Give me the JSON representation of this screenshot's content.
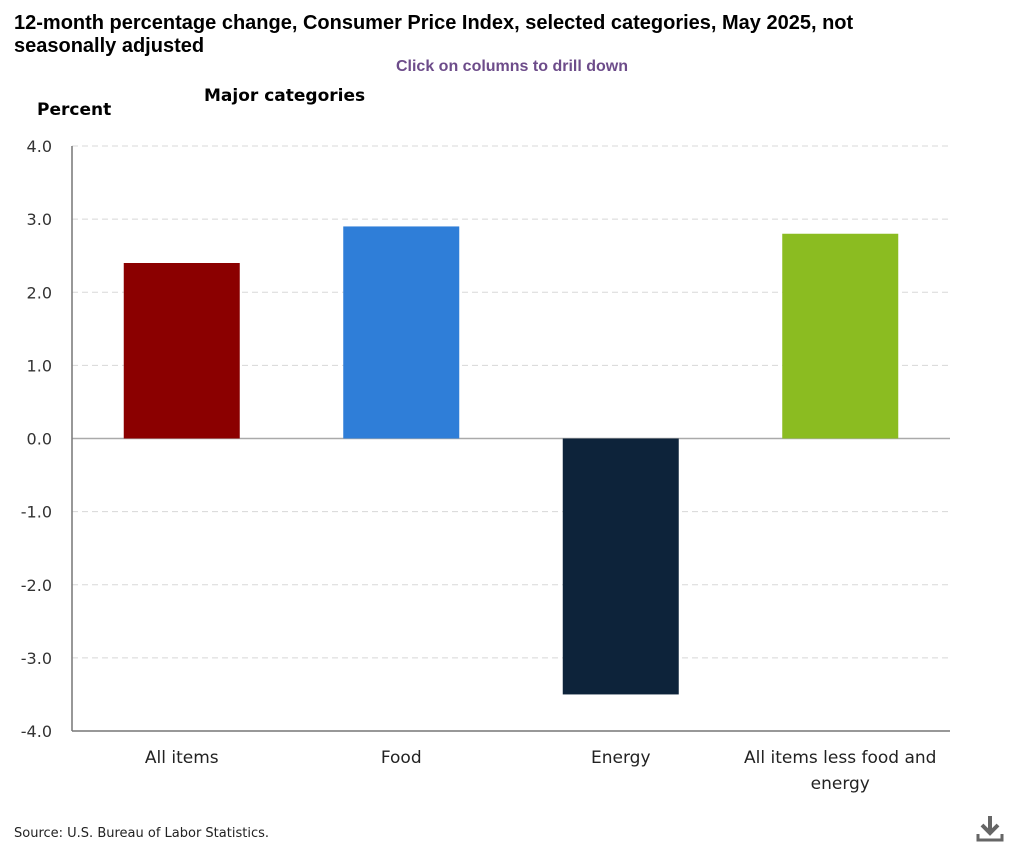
{
  "header": {
    "title": "12-month percentage change, Consumer Price Index, selected categories, May 2025, not seasonally adjusted",
    "subtitle": "Click on columns to drill down",
    "section_label": "Major categories"
  },
  "source": "Source: U.S. Bureau of Labor Statistics.",
  "download_icon": "download-icon",
  "chart_data": {
    "type": "bar",
    "title": "12-month percentage change, Consumer Price Index, selected categories, May 2025, not seasonally adjusted",
    "subtitle": "Click on columns to drill down",
    "xlabel": "",
    "ylabel": "Percent",
    "ylim": [
      -4.0,
      4.0
    ],
    "yticks": [
      "4.0",
      "3.0",
      "2.0",
      "1.0",
      "0.0",
      "-1.0",
      "-2.0",
      "-3.0",
      "-4.0"
    ],
    "ytick_values": [
      4,
      3,
      2,
      1,
      0,
      -1,
      -2,
      -3,
      -4
    ],
    "grid": true,
    "categories": [
      [
        "All items"
      ],
      [
        "Food"
      ],
      [
        "Energy"
      ],
      [
        "All items less food and",
        "energy"
      ]
    ],
    "values": [
      2.4,
      2.9,
      -3.5,
      2.8
    ],
    "colors": [
      "#8b0000",
      "#2f7ed8",
      "#0d233a",
      "#8bbc21"
    ]
  }
}
